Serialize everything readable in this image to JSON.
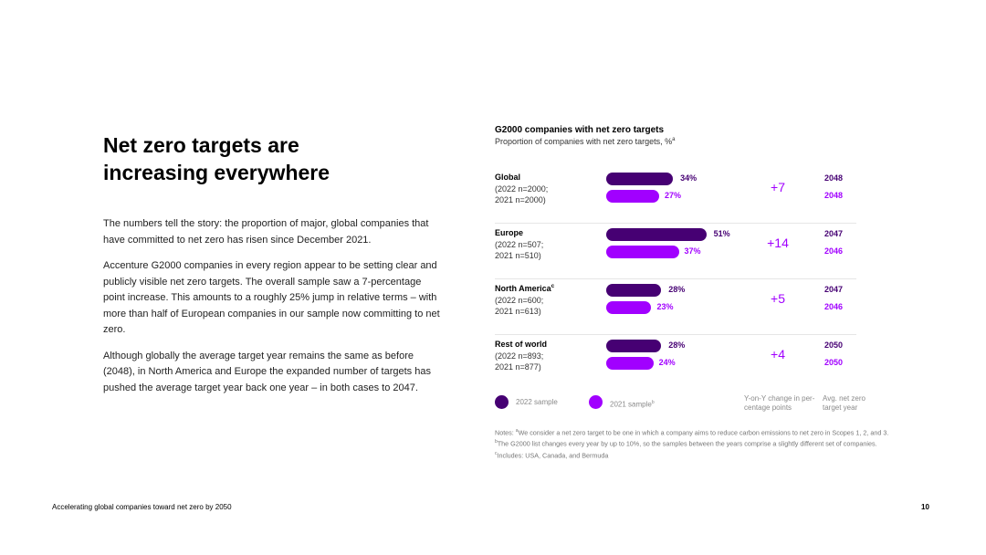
{
  "headline": {
    "line1": "Net zero targets are",
    "line2": "increasing everywhere"
  },
  "body": {
    "p1": "The numbers tell the story: the proportion of major, global companies that have committed to net zero has risen since December 2021.",
    "p2": "Accenture G2000 companies in every region appear to be setting clear and publicly visible net zero targets. The overall sample saw a 7-percentage point increase. This amounts to a roughly 25% jump in relative terms – with more than half of European companies in our sample now committing to net zero.",
    "p3": "Although globally the average target year remains the same as before (2048), in North America and Europe the expanded number of targets has pushed the average target year back one year – in both cases to 2047."
  },
  "chart_data": {
    "type": "bar",
    "title": "G2000 companies with net zero targets",
    "subtitle": "Proportion of companies with net zero targets, %",
    "subtitle_note": "a",
    "series": [
      {
        "name": "2022 sample",
        "color": "#460073"
      },
      {
        "name": "2021 sample",
        "name_note": "b",
        "color": "#a100ff"
      }
    ],
    "regions": [
      {
        "name": "Global",
        "name_note": "",
        "n_line1": "(2022 n=2000;",
        "n_line2": "2021 n=2000)",
        "value_2022": 34,
        "label_2022": "34%",
        "value_2021": 27,
        "label_2021": "27%",
        "change": "+7",
        "year_2022": "2048",
        "year_2021": "2048"
      },
      {
        "name": "Europe",
        "name_note": "",
        "n_line1": "(2022 n=507;",
        "n_line2": "2021 n=510)",
        "value_2022": 51,
        "label_2022": "51%",
        "value_2021": 37,
        "label_2021": "37%",
        "change": "+14",
        "year_2022": "2047",
        "year_2021": "2046"
      },
      {
        "name": "North America",
        "name_note": "c",
        "n_line1": "(2022 n=600;",
        "n_line2": "2021 n=613)",
        "value_2022": 28,
        "label_2022": "28%",
        "value_2021": 23,
        "label_2021": "23%",
        "change": "+5",
        "year_2022": "2047",
        "year_2021": "2046"
      },
      {
        "name": "Rest of world",
        "name_note": "",
        "n_line1": "(2022 n=893;",
        "n_line2": "2021 n=877)",
        "value_2022": 28,
        "label_2022": "28%",
        "value_2021": 24,
        "label_2021": "24%",
        "change": "+4",
        "year_2022": "2050",
        "year_2021": "2050"
      }
    ],
    "legend": {
      "change_line1": "Y-on-Y change in per-",
      "change_line2": "centage points",
      "year_line1": "Avg. net zero",
      "year_line2": "target year"
    }
  },
  "notes": {
    "prefix": "Notes: ",
    "a_mark": "a",
    "a_text": "We consider a net zero target to be one in which a company aims to reduce carbon emissions to net zero in Scopes 1, 2, and 3. ",
    "b_mark": "b",
    "b_text": "The G2000 list changes every year by up to 10%, so the samples between the years comprise a slightly different set of companies. ",
    "c_mark": "c",
    "c_text": "Includes: USA, Canada, and Bermuda"
  },
  "footer": {
    "left": "Accelerating global companies toward net zero by 2050",
    "page": "10"
  }
}
